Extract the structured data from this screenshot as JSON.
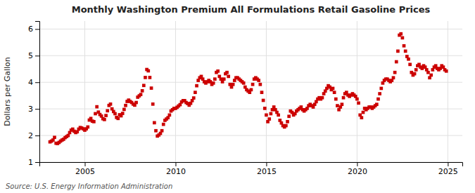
{
  "chart_data": {
    "type": "scatter",
    "title": "Monthly Washington Premium All Formulations Retail Gasoline Prices",
    "y_label": "Dollars per Gallon",
    "annotations": [
      "Source: U.S. Energy Information Administration"
    ],
    "color": "#cc0000",
    "marker": "square",
    "grid": true,
    "xlim": [
      2002.5,
      2025.8
    ],
    "xticks": [
      2005,
      2010,
      2015,
      2020,
      2025
    ],
    "ylim": [
      1,
      6.3
    ],
    "yticks": [
      1,
      2,
      3,
      4,
      5,
      6
    ],
    "x": [
      2003.0833,
      2003.1667,
      2003.25,
      2003.3333,
      2003.4167,
      2003.5,
      2003.5833,
      2003.6667,
      2003.75,
      2003.8333,
      2003.9167,
      2004.0,
      2004.0833,
      2004.1667,
      2004.25,
      2004.3333,
      2004.4167,
      2004.5,
      2004.5833,
      2004.6667,
      2004.75,
      2004.8333,
      2004.9167,
      2005.0,
      2005.0833,
      2005.1667,
      2005.25,
      2005.3333,
      2005.4167,
      2005.5,
      2005.5833,
      2005.6667,
      2005.75,
      2005.8333,
      2005.9167,
      2006.0,
      2006.0833,
      2006.1667,
      2006.25,
      2006.3333,
      2006.4167,
      2006.5,
      2006.5833,
      2006.6667,
      2006.75,
      2006.8333,
      2006.9167,
      2007.0,
      2007.0833,
      2007.1667,
      2007.25,
      2007.3333,
      2007.4167,
      2007.5,
      2007.5833,
      2007.6667,
      2007.75,
      2007.8333,
      2007.9167,
      2008.0,
      2008.0833,
      2008.1667,
      2008.25,
      2008.3333,
      2008.4167,
      2008.5,
      2008.5833,
      2008.6667,
      2008.75,
      2008.8333,
      2008.9167,
      2009.0,
      2009.0833,
      2009.1667,
      2009.25,
      2009.3333,
      2009.4167,
      2009.5,
      2009.5833,
      2009.6667,
      2009.75,
      2009.8333,
      2009.9167,
      2010.0,
      2010.0833,
      2010.1667,
      2010.25,
      2010.3333,
      2010.4167,
      2010.5,
      2010.5833,
      2010.6667,
      2010.75,
      2010.8333,
      2010.9167,
      2011.0,
      2011.0833,
      2011.1667,
      2011.25,
      2011.3333,
      2011.4167,
      2011.5,
      2011.5833,
      2011.6667,
      2011.75,
      2011.8333,
      2011.9167,
      2012.0,
      2012.0833,
      2012.1667,
      2012.25,
      2012.3333,
      2012.4167,
      2012.5,
      2012.5833,
      2012.6667,
      2012.75,
      2012.8333,
      2012.9167,
      2013.0,
      2013.0833,
      2013.1667,
      2013.25,
      2013.3333,
      2013.4167,
      2013.5,
      2013.5833,
      2013.6667,
      2013.75,
      2013.8333,
      2013.9167,
      2014.0,
      2014.0833,
      2014.1667,
      2014.25,
      2014.3333,
      2014.4167,
      2014.5,
      2014.5833,
      2014.6667,
      2014.75,
      2014.8333,
      2014.9167,
      2015.0,
      2015.0833,
      2015.1667,
      2015.25,
      2015.3333,
      2015.4167,
      2015.5,
      2015.5833,
      2015.6667,
      2015.75,
      2015.8333,
      2015.9167,
      2016.0,
      2016.0833,
      2016.1667,
      2016.25,
      2016.3333,
      2016.4167,
      2016.5,
      2016.5833,
      2016.6667,
      2016.75,
      2016.8333,
      2016.9167,
      2017.0,
      2017.0833,
      2017.1667,
      2017.25,
      2017.3333,
      2017.4167,
      2017.5,
      2017.5833,
      2017.6667,
      2017.75,
      2017.8333,
      2017.9167,
      2018.0,
      2018.0833,
      2018.1667,
      2018.25,
      2018.3333,
      2018.4167,
      2018.5,
      2018.5833,
      2018.6667,
      2018.75,
      2018.8333,
      2018.9167,
      2019.0,
      2019.0833,
      2019.1667,
      2019.25,
      2019.3333,
      2019.4167,
      2019.5,
      2019.5833,
      2019.6667,
      2019.75,
      2019.8333,
      2019.9167,
      2020.0,
      2020.0833,
      2020.1667,
      2020.25,
      2020.3333,
      2020.4167,
      2020.5,
      2020.5833,
      2020.6667,
      2020.75,
      2020.8333,
      2020.9167,
      2021.0,
      2021.0833,
      2021.1667,
      2021.25,
      2021.3333,
      2021.4167,
      2021.5,
      2021.5833,
      2021.6667,
      2021.75,
      2021.8333,
      2021.9167,
      2022.0,
      2022.0833,
      2022.1667,
      2022.25,
      2022.3333,
      2022.4167,
      2022.5,
      2022.5833,
      2022.6667,
      2022.75,
      2022.8333,
      2022.9167,
      2023.0,
      2023.0833,
      2023.1667,
      2023.25,
      2023.3333,
      2023.4167,
      2023.5,
      2023.5833,
      2023.6667,
      2023.75,
      2023.8333,
      2023.9167,
      2024.0,
      2024.0833,
      2024.1667,
      2024.25,
      2024.3333,
      2024.4167,
      2024.5,
      2024.5833,
      2024.6667,
      2024.75,
      2024.8333,
      2024.9167
    ],
    "values": [
      1.76,
      1.79,
      1.83,
      1.93,
      1.71,
      1.7,
      1.74,
      1.79,
      1.83,
      1.86,
      1.92,
      1.96,
      2.0,
      2.11,
      2.2,
      2.24,
      2.16,
      2.11,
      2.14,
      2.24,
      2.3,
      2.28,
      2.25,
      2.2,
      2.25,
      2.32,
      2.58,
      2.64,
      2.54,
      2.52,
      2.82,
      3.08,
      2.88,
      2.79,
      2.73,
      2.63,
      2.6,
      2.75,
      2.93,
      3.13,
      3.18,
      3.0,
      2.9,
      2.82,
      2.68,
      2.64,
      2.78,
      2.74,
      2.83,
      2.98,
      3.13,
      3.28,
      3.33,
      3.28,
      3.24,
      3.18,
      3.14,
      3.24,
      3.44,
      3.49,
      3.54,
      3.68,
      3.88,
      4.18,
      4.48,
      4.43,
      4.18,
      3.78,
      3.18,
      2.48,
      2.18,
      1.98,
      2.02,
      2.08,
      2.18,
      2.42,
      2.57,
      2.62,
      2.67,
      2.77,
      2.92,
      2.97,
      3.02,
      3.02,
      3.06,
      3.11,
      3.16,
      3.26,
      3.31,
      3.31,
      3.24,
      3.2,
      3.14,
      3.21,
      3.31,
      3.41,
      3.62,
      3.87,
      4.07,
      4.17,
      4.22,
      4.12,
      4.02,
      3.97,
      4.02,
      4.07,
      4.02,
      3.92,
      3.97,
      4.12,
      4.37,
      4.42,
      4.22,
      4.12,
      4.02,
      4.12,
      4.32,
      4.37,
      4.22,
      3.92,
      3.82,
      3.92,
      4.07,
      4.17,
      4.17,
      4.12,
      4.07,
      4.02,
      3.97,
      3.82,
      3.72,
      3.67,
      3.62,
      3.72,
      3.92,
      4.12,
      4.17,
      4.12,
      4.07,
      3.92,
      3.62,
      3.32,
      3.02,
      2.77,
      2.52,
      2.62,
      2.82,
      2.97,
      3.07,
      2.97,
      2.87,
      2.77,
      2.57,
      2.47,
      2.37,
      2.32,
      2.37,
      2.52,
      2.72,
      2.92,
      2.87,
      2.77,
      2.82,
      2.92,
      2.97,
      3.02,
      3.07,
      2.97,
      2.92,
      2.97,
      3.02,
      3.12,
      3.17,
      3.12,
      3.07,
      3.17,
      3.27,
      3.37,
      3.42,
      3.37,
      3.42,
      3.57,
      3.67,
      3.77,
      3.87,
      3.82,
      3.72,
      3.77,
      3.62,
      3.37,
      3.12,
      2.97,
      3.07,
      3.17,
      3.42,
      3.57,
      3.62,
      3.52,
      3.47,
      3.52,
      3.57,
      3.52,
      3.47,
      3.37,
      3.22,
      2.77,
      2.67,
      2.87,
      3.02,
      2.97,
      3.02,
      3.07,
      3.07,
      3.02,
      3.07,
      3.12,
      3.17,
      3.37,
      3.57,
      3.77,
      3.97,
      4.07,
      4.12,
      4.12,
      4.07,
      4.02,
      4.07,
      4.17,
      4.37,
      4.77,
      5.17,
      5.77,
      5.82,
      5.67,
      5.37,
      5.17,
      4.97,
      4.87,
      4.67,
      4.37,
      4.27,
      4.32,
      4.47,
      4.62,
      4.67,
      4.57,
      4.52,
      4.62,
      4.57,
      4.47,
      4.37,
      4.17,
      4.27,
      4.47,
      4.57,
      4.62,
      4.52,
      4.47,
      4.52,
      4.62,
      4.57,
      4.47,
      4.42
    ]
  }
}
